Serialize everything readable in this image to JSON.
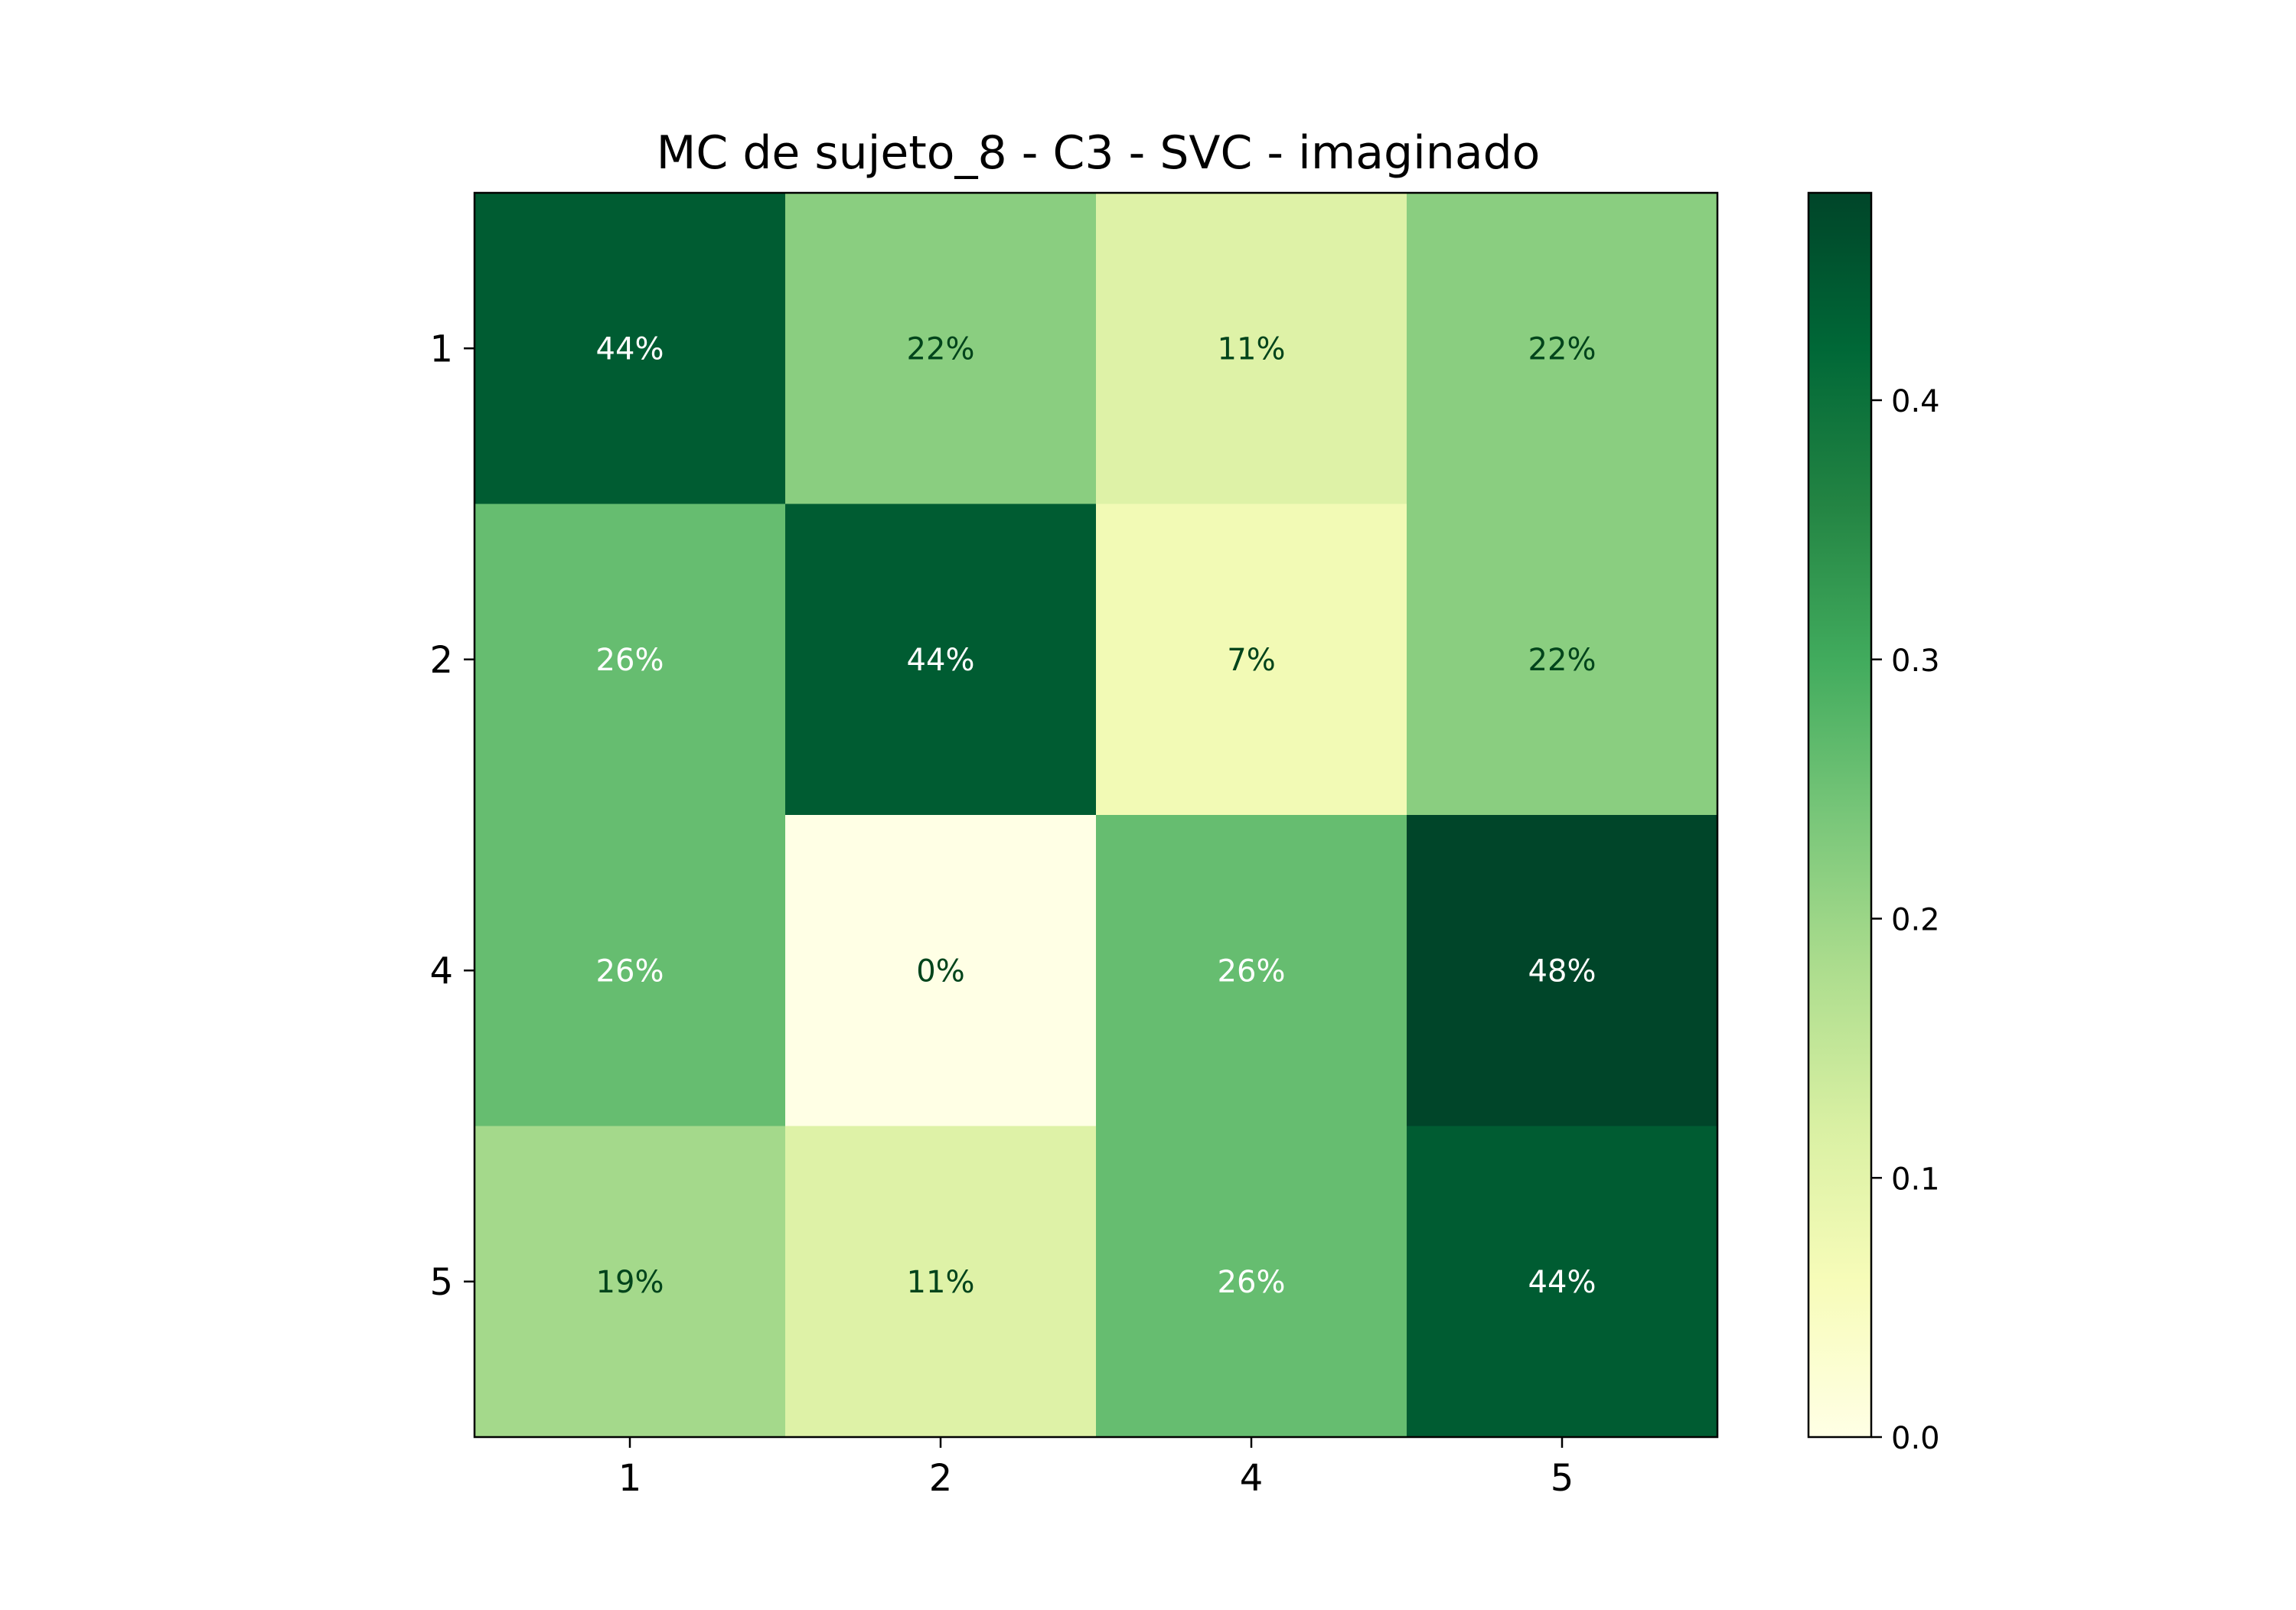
{
  "chart_data": {
    "type": "heatmap",
    "title": "MC de sujeto_8 - C3 - SVC - imaginado",
    "xlabel": "",
    "ylabel": "",
    "x_categories": [
      "1",
      "2",
      "4",
      "5"
    ],
    "y_categories": [
      "1",
      "2",
      "4",
      "5"
    ],
    "values": [
      [
        0.44,
        0.22,
        0.11,
        0.22
      ],
      [
        0.26,
        0.44,
        0.07,
        0.22
      ],
      [
        0.26,
        0.0,
        0.26,
        0.48
      ],
      [
        0.19,
        0.11,
        0.26,
        0.44
      ]
    ],
    "cell_labels": [
      [
        "44%",
        "22%",
        "11%",
        "22%"
      ],
      [
        "26%",
        "44%",
        "7%",
        "22%"
      ],
      [
        "26%",
        "0%",
        "26%",
        "48%"
      ],
      [
        "19%",
        "11%",
        "26%",
        "44%"
      ]
    ],
    "colormap": "YlGn",
    "color_range": [
      0.0,
      0.48
    ],
    "colorbar_ticks": [
      "0.0",
      "0.1",
      "0.2",
      "0.3",
      "0.4"
    ],
    "colorbar_tick_values": [
      0.0,
      0.1,
      0.2,
      0.3,
      0.4
    ],
    "grid": false,
    "legend": "colorbar-right"
  }
}
